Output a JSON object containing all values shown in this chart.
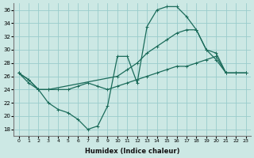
{
  "xlabel": "Humidex (Indice chaleur)",
  "bg_color": "#cce8e4",
  "grid_color": "#99cccc",
  "line_color": "#1a6b5a",
  "xlim": [
    -0.5,
    23.5
  ],
  "ylim": [
    17,
    37
  ],
  "yticks": [
    18,
    20,
    22,
    24,
    26,
    28,
    30,
    32,
    34,
    36
  ],
  "xticks": [
    0,
    1,
    2,
    3,
    4,
    5,
    6,
    7,
    8,
    9,
    10,
    11,
    12,
    13,
    14,
    15,
    16,
    17,
    18,
    19,
    20,
    21,
    22,
    23
  ],
  "lines": [
    {
      "x": [
        0,
        1,
        2,
        3,
        4,
        5,
        6,
        7,
        8,
        9,
        10,
        11,
        12,
        13,
        14,
        15,
        16,
        17,
        18,
        19,
        20,
        21,
        22,
        23
      ],
      "y": [
        26.5,
        25.5,
        24.0,
        22.0,
        21.0,
        20.5,
        19.5,
        18.0,
        18.5,
        21.5,
        29.0,
        29.0,
        25.0,
        33.5,
        36.0,
        36.5,
        36.5,
        35.0,
        33.0,
        30.0,
        28.5,
        26.5,
        26.5,
        26.5
      ]
    },
    {
      "x": [
        0,
        1,
        2,
        3,
        10,
        11,
        12,
        13,
        14,
        15,
        16,
        17,
        18,
        19,
        20,
        21,
        22,
        23
      ],
      "y": [
        26.5,
        25.5,
        24.0,
        24.0,
        26.0,
        27.0,
        28.0,
        29.5,
        30.5,
        31.5,
        32.5,
        33.0,
        33.0,
        30.0,
        29.5,
        26.5,
        26.5,
        26.5
      ]
    },
    {
      "x": [
        0,
        1,
        2,
        3,
        4,
        5,
        6,
        7,
        8,
        9,
        10,
        11,
        12,
        13,
        14,
        15,
        16,
        17,
        18,
        19,
        20,
        21,
        22,
        23
      ],
      "y": [
        26.5,
        25.0,
        24.0,
        24.0,
        24.0,
        24.0,
        24.5,
        25.0,
        24.5,
        24.0,
        24.5,
        25.0,
        25.5,
        26.0,
        26.5,
        27.0,
        27.5,
        27.5,
        28.0,
        28.5,
        29.0,
        26.5,
        26.5,
        26.5
      ]
    }
  ]
}
